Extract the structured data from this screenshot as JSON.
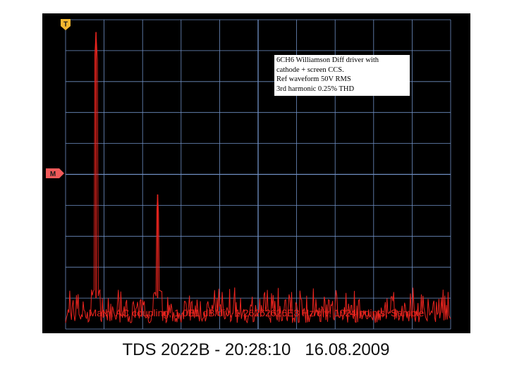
{
  "colors": {
    "screen_background": "#000000",
    "graticule": "#6f8fc4",
    "trace": "#e8241e",
    "trigger_marker": "#f2b630",
    "math_marker": "#f05a5a"
  },
  "markers": {
    "trigger_label": "T",
    "math_label": "M"
  },
  "annotation": {
    "lines": [
      "6CH6 Williamson Diff driver with",
      "cathode + screen CCS.",
      "Ref waveform 50V RMS",
      "3rd harmonic 0.25% THD"
    ]
  },
  "status_line": "Math, AC coupling, 1.0E1 dB/div, 1.26262626E3 Hz/div, 1024 points, Sample",
  "footer": {
    "instrument": "TDS 2022B - 20:28:10",
    "date": "16.08.2009"
  },
  "chart_data": {
    "type": "line",
    "title": "",
    "xlabel": "",
    "ylabel": "",
    "x_divisions": 10,
    "y_divisions": 10,
    "x_units_per_div": "1.26262626E3 Hz",
    "y_units_per_div": "1.0E1 dB",
    "xlim": [
      0,
      10
    ],
    "ylim": [
      0,
      10
    ],
    "grid": true,
    "series": [
      {
        "peaks": [
          {
            "x": 0.79,
            "y": 9.6,
            "label": "fundamental"
          },
          {
            "x": 2.39,
            "y": 4.35,
            "label": "3rd harmonic"
          }
        ],
        "noise_floor": {
          "min": 0.2,
          "max": 1.0,
          "spikes_max": 1.35
        }
      }
    ]
  }
}
